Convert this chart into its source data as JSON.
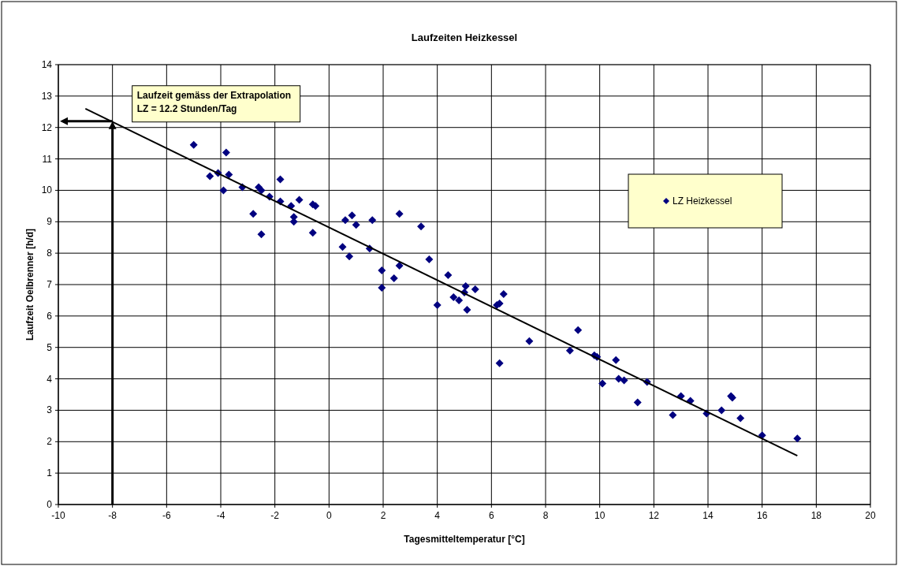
{
  "chart_data": {
    "type": "scatter",
    "title": "Laufzeiten Heizkessel",
    "xlabel": "Tagesmitteltemperatur [°C]",
    "ylabel": "Laufzeit Oelbrenner [h/d]",
    "annotations": [
      {
        "text": "Laufzeit gemäss der Extrapolation\nLZ = 12.2 Stunden/Tag",
        "x": -8,
        "y": 12.2
      }
    ],
    "xlim": [
      -10,
      20
    ],
    "xticks": [
      -10,
      -8,
      -6,
      -4,
      -2,
      0,
      2,
      4,
      6,
      8,
      10,
      12,
      14,
      16,
      18,
      20
    ],
    "ylim": [
      0,
      14
    ],
    "yticks": [
      0,
      1,
      2,
      3,
      4,
      5,
      6,
      7,
      8,
      9,
      10,
      11,
      12,
      13,
      14
    ],
    "grid": true,
    "legend": "top right",
    "marker": "diamond",
    "series": [
      {
        "name": "LZ Heizkessel",
        "color": "#000080",
        "x": [
          -5.0,
          -4.4,
          -4.1,
          -3.9,
          -3.8,
          -3.7,
          -3.2,
          -2.8,
          -2.6,
          -2.5,
          -2.5,
          -2.2,
          -1.8,
          -1.8,
          -1.4,
          -1.3,
          -1.3,
          -1.1,
          -0.6,
          -0.6,
          -0.5,
          0.5,
          0.6,
          0.75,
          0.85,
          1.0,
          1.5,
          1.6,
          1.95,
          1.95,
          2.4,
          2.6,
          2.6,
          3.4,
          3.7,
          4.0,
          4.4,
          4.6,
          4.8,
          5.0,
          5.05,
          5.1,
          5.4,
          6.2,
          6.3,
          6.3,
          6.45,
          7.4,
          8.9,
          9.2,
          9.8,
          9.9,
          10.1,
          10.6,
          10.7,
          10.9,
          11.4,
          11.75,
          12.7,
          13.0,
          13.35,
          13.95,
          14.5,
          14.85,
          14.9,
          15.2,
          16.0,
          17.3
        ],
        "values": [
          11.45,
          10.45,
          10.55,
          10.0,
          11.2,
          10.5,
          10.1,
          9.25,
          10.1,
          10.0,
          8.6,
          9.8,
          10.35,
          9.65,
          9.5,
          9.15,
          9.0,
          9.7,
          9.55,
          8.65,
          9.5,
          8.2,
          9.05,
          7.9,
          9.2,
          8.9,
          8.15,
          9.05,
          7.45,
          6.9,
          7.2,
          7.6,
          9.25,
          8.85,
          7.8,
          6.35,
          7.3,
          6.6,
          6.5,
          6.75,
          6.95,
          6.2,
          6.85,
          6.35,
          6.4,
          4.5,
          6.7,
          5.2,
          4.9,
          5.55,
          4.75,
          4.7,
          3.85,
          4.6,
          4.0,
          3.95,
          3.25,
          3.9,
          2.85,
          3.45,
          3.3,
          2.9,
          3.0,
          3.45,
          3.4,
          2.75,
          2.2,
          2.1
        ]
      },
      {
        "color": "#000000",
        "type": "line",
        "marker": "none",
        "x": [
          -9,
          17.3
        ],
        "values": [
          12.6,
          1.55
        ]
      }
    ]
  }
}
